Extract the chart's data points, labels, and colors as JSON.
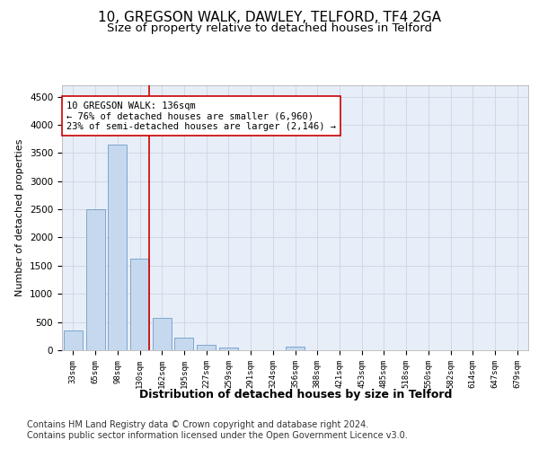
{
  "title1": "10, GREGSON WALK, DAWLEY, TELFORD, TF4 2GA",
  "title2": "Size of property relative to detached houses in Telford",
  "xlabel": "Distribution of detached houses by size in Telford",
  "ylabel": "Number of detached properties",
  "categories": [
    "33sqm",
    "65sqm",
    "98sqm",
    "130sqm",
    "162sqm",
    "195sqm",
    "227sqm",
    "259sqm",
    "291sqm",
    "324sqm",
    "356sqm",
    "388sqm",
    "421sqm",
    "453sqm",
    "485sqm",
    "518sqm",
    "550sqm",
    "582sqm",
    "614sqm",
    "647sqm",
    "679sqm"
  ],
  "values": [
    350,
    2500,
    3650,
    1620,
    570,
    220,
    100,
    55,
    0,
    0,
    60,
    0,
    0,
    0,
    0,
    0,
    0,
    0,
    0,
    0,
    0
  ],
  "bar_color": "#c5d8ed",
  "bar_edge_color": "#5a8fc0",
  "grid_color": "#d0d8e8",
  "background_color": "#e8eef8",
  "annotation_box_color": "#ffffff",
  "annotation_border_color": "#cc0000",
  "vline_color": "#cc0000",
  "annotation_title": "10 GREGSON WALK: 136sqm",
  "annotation_line1": "← 76% of detached houses are smaller (6,960)",
  "annotation_line2": "23% of semi-detached houses are larger (2,146) →",
  "ylim": [
    0,
    4700
  ],
  "yticks": [
    0,
    500,
    1000,
    1500,
    2000,
    2500,
    3000,
    3500,
    4000,
    4500
  ],
  "footer1": "Contains HM Land Registry data © Crown copyright and database right 2024.",
  "footer2": "Contains public sector information licensed under the Open Government Licence v3.0.",
  "title1_fontsize": 11,
  "title2_fontsize": 9.5,
  "annotation_fontsize": 7.5,
  "footer_fontsize": 7.0,
  "xlabel_fontsize": 9,
  "ylabel_fontsize": 8
}
